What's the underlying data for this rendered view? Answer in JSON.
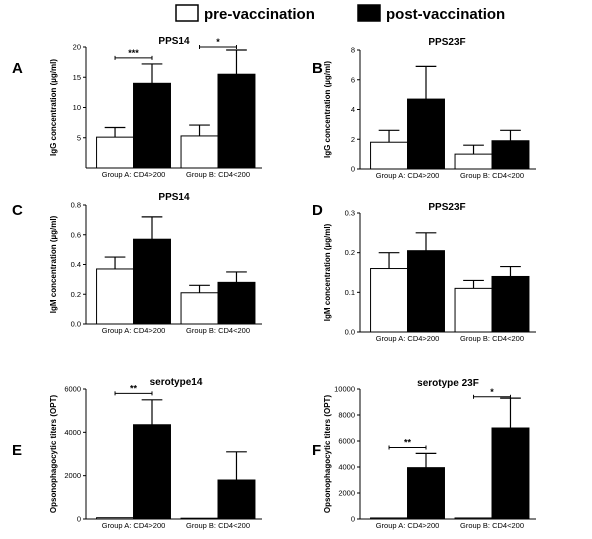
{
  "legend": {
    "pre_label": "pre-vaccination",
    "post_label": "post-vaccination",
    "pre_color": "#ffffff",
    "post_color": "#000000"
  },
  "chart_data": [
    {
      "letter": "A",
      "type": "bar",
      "title": "PPS14",
      "ylabel": "IgG  concentration  (µg/ml)",
      "categories": [
        "Group A: CD4>200",
        "Group B: CD4<200"
      ],
      "ylim": [
        0,
        20
      ],
      "yticks": [
        5,
        10,
        15,
        20
      ],
      "series": [
        {
          "name": "pre-vaccination",
          "values": [
            5.1,
            5.3
          ],
          "errors": [
            1.6,
            1.8
          ]
        },
        {
          "name": "post-vaccination",
          "values": [
            14.0,
            15.5
          ],
          "errors": [
            3.2,
            4.0
          ]
        }
      ],
      "significance": [
        {
          "group": 0,
          "label": "***",
          "y": 18.2
        },
        {
          "group": 1,
          "label": "*",
          "y": 20.0
        }
      ]
    },
    {
      "letter": "B",
      "type": "bar",
      "title": "PPS23F",
      "ylabel": "IgG  concentration  (µg/ml)",
      "categories": [
        "Group A: CD4>200",
        "Group B: CD4<200"
      ],
      "ylim": [
        0,
        8
      ],
      "yticks": [
        0,
        2,
        4,
        6,
        8
      ],
      "series": [
        {
          "name": "pre-vaccination",
          "values": [
            1.8,
            1.0
          ],
          "errors": [
            0.8,
            0.6
          ]
        },
        {
          "name": "post-vaccination",
          "values": [
            4.7,
            1.9
          ],
          "errors": [
            2.2,
            0.7
          ]
        }
      ],
      "significance": []
    },
    {
      "letter": "C",
      "type": "bar",
      "title": "PPS14",
      "ylabel": "IgM  concentration  (µg/ml)",
      "categories": [
        "Group A: CD4>200",
        "Group B: CD4<200"
      ],
      "ylim": [
        0,
        0.8
      ],
      "yticks": [
        0.0,
        0.2,
        0.4,
        0.6,
        0.8
      ],
      "tick_labels": [
        "0.0",
        "0.2",
        "0.4",
        "0.6",
        "0.8"
      ],
      "series": [
        {
          "name": "pre-vaccination",
          "values": [
            0.37,
            0.21
          ],
          "errors": [
            0.08,
            0.05
          ]
        },
        {
          "name": "post-vaccination",
          "values": [
            0.57,
            0.28
          ],
          "errors": [
            0.15,
            0.07
          ]
        }
      ],
      "significance": []
    },
    {
      "letter": "D",
      "type": "bar",
      "title": "PPS23F",
      "ylabel": "IgM  concentration  (µg/ml)",
      "categories": [
        "Group A: CD4>200",
        "Group B: CD4<200"
      ],
      "ylim": [
        0,
        0.3
      ],
      "yticks": [
        0.0,
        0.1,
        0.2,
        0.3
      ],
      "tick_labels": [
        "0.0",
        "0.1",
        "0.2",
        "0.3"
      ],
      "series": [
        {
          "name": "pre-vaccination",
          "values": [
            0.16,
            0.11
          ],
          "errors": [
            0.04,
            0.02
          ]
        },
        {
          "name": "post-vaccination",
          "values": [
            0.205,
            0.14
          ],
          "errors": [
            0.045,
            0.025
          ]
        }
      ],
      "significance": []
    },
    {
      "letter": "E",
      "type": "bar",
      "title": "serotype14",
      "ylabel": "Opsonophagocytic titers (OPT)",
      "categories": [
        "Group A: CD4>200",
        "Group B: CD4<200"
      ],
      "ylim": [
        0,
        6000
      ],
      "yticks": [
        0,
        2000,
        4000,
        6000
      ],
      "series": [
        {
          "name": "pre-vaccination",
          "values": [
            60,
            30
          ],
          "errors": [
            0,
            0
          ]
        },
        {
          "name": "post-vaccination",
          "values": [
            4350,
            1800
          ],
          "errors": [
            1150,
            1300
          ]
        }
      ],
      "significance": [
        {
          "group": 0,
          "label": "**",
          "y": 5800
        }
      ]
    },
    {
      "letter": "F",
      "type": "bar",
      "title": "serotype 23F",
      "ylabel": "Opsonophagocytic titers (OPT)",
      "categories": [
        "Group A: CD4>200",
        "Group B: CD4<200"
      ],
      "ylim": [
        0,
        10000
      ],
      "yticks": [
        0,
        2000,
        4000,
        6000,
        8000,
        10000
      ],
      "series": [
        {
          "name": "pre-vaccination",
          "values": [
            80,
            80
          ],
          "errors": [
            0,
            0
          ]
        },
        {
          "name": "post-vaccination",
          "values": [
            3950,
            7000
          ],
          "errors": [
            1100,
            2300
          ]
        }
      ],
      "significance": [
        {
          "group": 0,
          "label": "**",
          "y": 5500
        },
        {
          "group": 1,
          "label": "*",
          "y": 9400
        }
      ]
    }
  ]
}
